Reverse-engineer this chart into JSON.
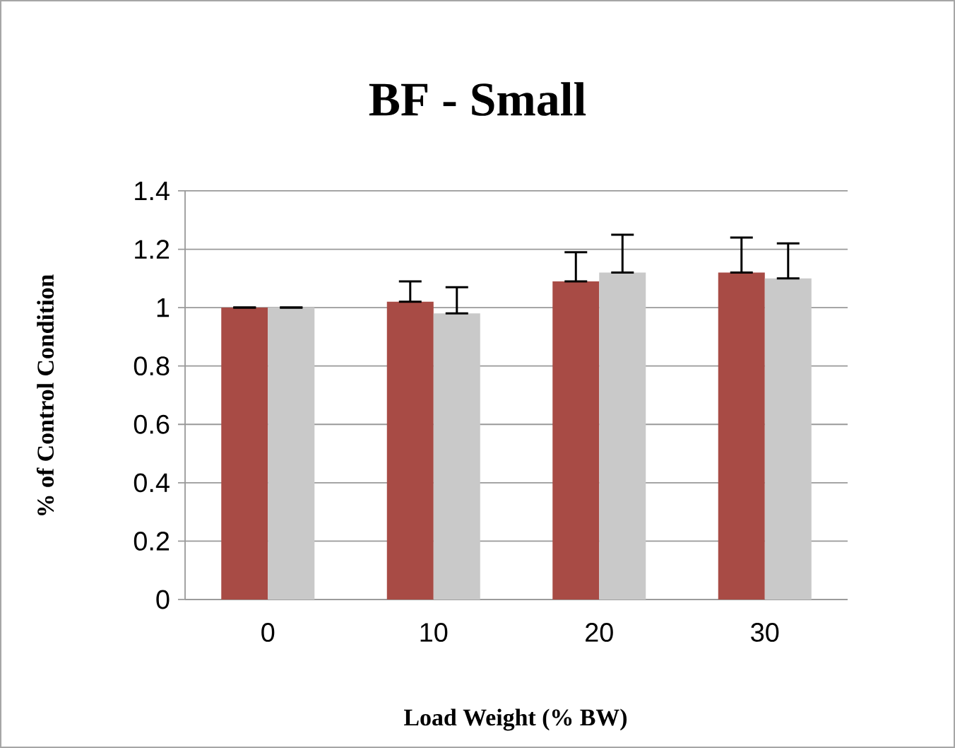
{
  "chart_data": {
    "type": "bar",
    "title": "BF - Small",
    "xlabel": "Load Weight (% BW)",
    "ylabel": "% of Control Condition",
    "categories": [
      "0",
      "10",
      "20",
      "30"
    ],
    "series": [
      {
        "color": "#a84b45",
        "values": [
          1.0,
          1.02,
          1.09,
          1.12
        ],
        "errors": [
          [
            1.0,
            1.0
          ],
          [
            1.02,
            1.09
          ],
          [
            1.09,
            1.19
          ],
          [
            1.12,
            1.24
          ]
        ]
      },
      {
        "color": "#c9c9c9",
        "values": [
          1.0,
          0.98,
          1.12,
          1.1
        ],
        "errors": [
          [
            1.0,
            1.0
          ],
          [
            0.98,
            1.07
          ],
          [
            1.12,
            1.25
          ],
          [
            1.1,
            1.22
          ]
        ]
      }
    ],
    "ylim": [
      0,
      1.4
    ],
    "yticks": [
      0,
      0.2,
      0.4,
      0.6,
      0.8,
      1,
      1.2,
      1.4
    ],
    "grid": "y"
  }
}
